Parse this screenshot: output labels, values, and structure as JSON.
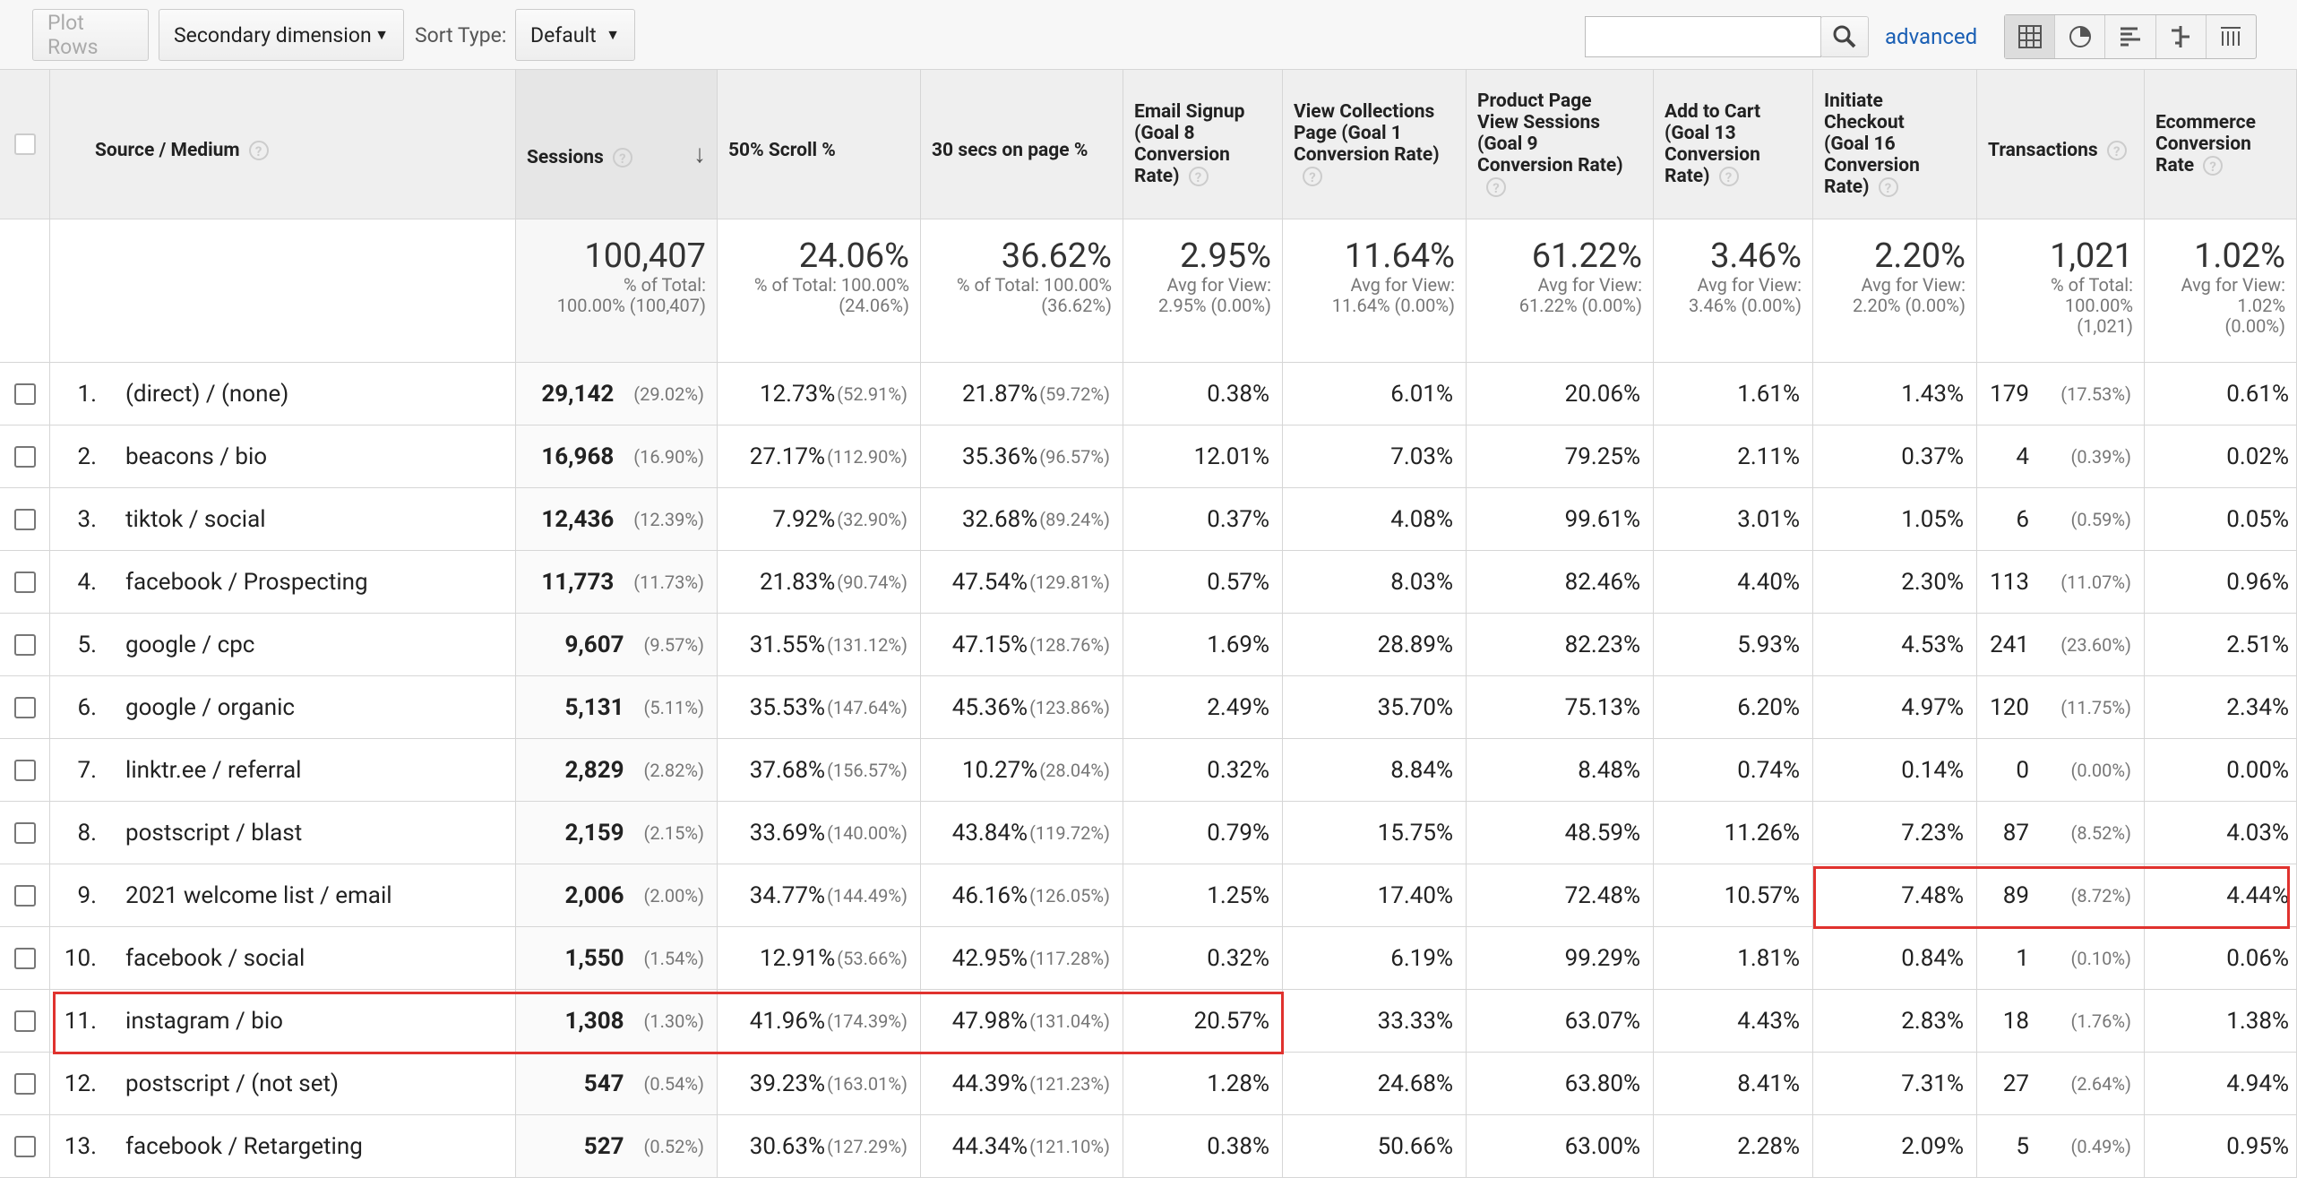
{
  "toolbar": {
    "plot_rows": "Plot Rows",
    "secondary": "Secondary dimension",
    "sort_label": "Sort Type:",
    "sort_value": "Default",
    "advanced": "advanced"
  },
  "table": {
    "headers": [
      [
        "Source / Medium"
      ],
      [
        "Sessions"
      ],
      [
        "50% Scroll %"
      ],
      [
        "30 secs on page %"
      ],
      [
        "Email Signup",
        "(Goal 8",
        "Conversion",
        "Rate)"
      ],
      [
        "View Collections",
        "Page (Goal 1",
        "Conversion Rate)"
      ],
      [
        "Product Page",
        "View Sessions",
        "(Goal 9",
        "Conversion Rate)"
      ],
      [
        "Add to Cart",
        "(Goal 13",
        "Conversion",
        "Rate)"
      ],
      [
        "Initiate",
        "Checkout",
        "(Goal 16",
        "Conversion",
        "Rate)"
      ],
      [
        "Transactions"
      ],
      [
        "Ecommerce",
        "Conversion",
        "Rate"
      ]
    ],
    "totals": [
      {
        "main": "100,407",
        "sub": [
          "% of Total:",
          "100.00% (100,407)"
        ]
      },
      {
        "main": "24.06%",
        "sub": [
          "% of Total: 100.00%",
          "(24.06%)"
        ]
      },
      {
        "main": "36.62%",
        "sub": [
          "% of Total: 100.00%",
          "(36.62%)"
        ]
      },
      {
        "main": "2.95%",
        "sub": [
          "Avg for View:",
          "2.95% (0.00%)"
        ]
      },
      {
        "main": "11.64%",
        "sub": [
          "Avg for View:",
          "11.64% (0.00%)"
        ]
      },
      {
        "main": "61.22%",
        "sub": [
          "Avg for View:",
          "61.22% (0.00%)"
        ]
      },
      {
        "main": "3.46%",
        "sub": [
          "Avg for View:",
          "3.46% (0.00%)"
        ]
      },
      {
        "main": "2.20%",
        "sub": [
          "Avg for View:",
          "2.20% (0.00%)"
        ]
      },
      {
        "main": "1,021",
        "sub": [
          "% of Total:",
          "100.00%",
          "(1,021)"
        ]
      },
      {
        "main": "1.02%",
        "sub": [
          "Avg for View:",
          "1.02%",
          "(0.00%)"
        ]
      }
    ],
    "rows": [
      [
        "1.",
        "(direct) / (none)",
        "29,142",
        "(29.02%)",
        "12.73%",
        "(52.91%)",
        "21.87%",
        "(59.72%)",
        "0.38%",
        "6.01%",
        "20.06%",
        "1.61%",
        "1.43%",
        "179",
        "(17.53%)",
        "0.61%"
      ],
      [
        "2.",
        "beacons / bio",
        "16,968",
        "(16.90%)",
        "27.17%",
        "(112.90%)",
        "35.36%",
        "(96.57%)",
        "12.01%",
        "7.03%",
        "79.25%",
        "2.11%",
        "0.37%",
        "4",
        "(0.39%)",
        "0.02%"
      ],
      [
        "3.",
        "tiktok / social",
        "12,436",
        "(12.39%)",
        "7.92%",
        "(32.90%)",
        "32.68%",
        "(89.24%)",
        "0.37%",
        "4.08%",
        "99.61%",
        "3.01%",
        "1.05%",
        "6",
        "(0.59%)",
        "0.05%"
      ],
      [
        "4.",
        "facebook / Prospecting",
        "11,773",
        "(11.73%)",
        "21.83%",
        "(90.74%)",
        "47.54%",
        "(129.81%)",
        "0.57%",
        "8.03%",
        "82.46%",
        "4.40%",
        "2.30%",
        "113",
        "(11.07%)",
        "0.96%"
      ],
      [
        "5.",
        "google / cpc",
        "9,607",
        "(9.57%)",
        "31.55%",
        "(131.12%)",
        "47.15%",
        "(128.76%)",
        "1.69%",
        "28.89%",
        "82.23%",
        "5.93%",
        "4.53%",
        "241",
        "(23.60%)",
        "2.51%"
      ],
      [
        "6.",
        "google / organic",
        "5,131",
        "(5.11%)",
        "35.53%",
        "(147.64%)",
        "45.36%",
        "(123.86%)",
        "2.49%",
        "35.70%",
        "75.13%",
        "6.20%",
        "4.97%",
        "120",
        "(11.75%)",
        "2.34%"
      ],
      [
        "7.",
        "linktr.ee / referral",
        "2,829",
        "(2.82%)",
        "37.68%",
        "(156.57%)",
        "10.27%",
        "(28.04%)",
        "0.32%",
        "8.84%",
        "8.48%",
        "0.74%",
        "0.14%",
        "0",
        "(0.00%)",
        "0.00%"
      ],
      [
        "8.",
        "postscript / blast",
        "2,159",
        "(2.15%)",
        "33.69%",
        "(140.00%)",
        "43.84%",
        "(119.72%)",
        "0.79%",
        "15.75%",
        "48.59%",
        "11.26%",
        "7.23%",
        "87",
        "(8.52%)",
        "4.03%"
      ],
      [
        "9.",
        "2021 welcome list / email",
        "2,006",
        "(2.00%)",
        "34.77%",
        "(144.49%)",
        "46.16%",
        "(126.05%)",
        "1.25%",
        "17.40%",
        "72.48%",
        "10.57%",
        "7.48%",
        "89",
        "(8.72%)",
        "4.44%"
      ],
      [
        "10.",
        "facebook / social",
        "1,550",
        "(1.54%)",
        "12.91%",
        "(53.66%)",
        "42.95%",
        "(117.28%)",
        "0.32%",
        "6.19%",
        "99.29%",
        "1.81%",
        "0.84%",
        "1",
        "(0.10%)",
        "0.06%"
      ],
      [
        "11.",
        "instagram / bio",
        "1,308",
        "(1.30%)",
        "41.96%",
        "(174.39%)",
        "47.98%",
        "(131.04%)",
        "20.57%",
        "33.33%",
        "63.07%",
        "4.43%",
        "2.83%",
        "18",
        "(1.76%)",
        "1.38%"
      ],
      [
        "12.",
        "postscript / (not set)",
        "547",
        "(0.54%)",
        "39.23%",
        "(163.01%)",
        "44.39%",
        "(121.23%)",
        "1.28%",
        "24.68%",
        "63.80%",
        "8.41%",
        "7.31%",
        "27",
        "(2.64%)",
        "4.94%"
      ],
      [
        "13.",
        "facebook / Retargeting",
        "527",
        "(0.52%)",
        "30.63%",
        "(127.29%)",
        "44.34%",
        "(121.10%)",
        "0.38%",
        "50.66%",
        "63.00%",
        "2.28%",
        "2.09%",
        "5",
        "(0.49%)",
        "0.95%"
      ]
    ]
  }
}
